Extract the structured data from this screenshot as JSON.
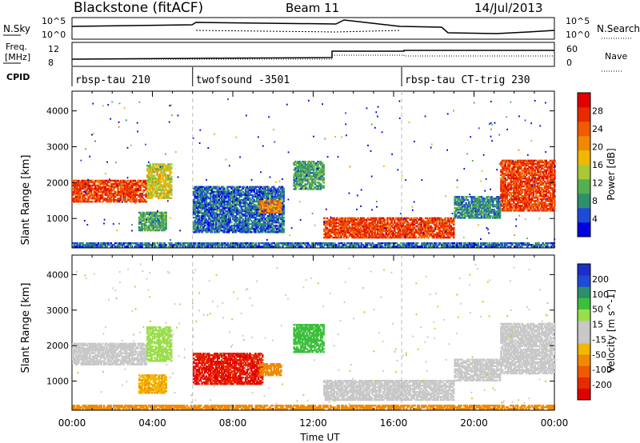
{
  "header": {
    "station": "Blackstone (fitACF)",
    "beam": "Beam 11",
    "date": "14/Jul/2013"
  },
  "top_panels": {
    "nsky_label": "N.Sky",
    "nsearch_label": "N.Search",
    "freq_label_1": "Freq.",
    "freq_label_2": "[MHz]",
    "nave_label": "Nave",
    "cpid_label": "CPID",
    "nsky_ticks": [
      "10^5",
      "10^0"
    ],
    "nsearch_ticks": [
      "10^5",
      "10^0"
    ],
    "freq_ticks": [
      "12",
      "8"
    ],
    "nave_ticks": [
      "60",
      "0"
    ]
  },
  "cpid_segments": [
    {
      "label": "rbsp-tau 210",
      "start_hour": 0
    },
    {
      "label": "twofsound -3501",
      "start_hour": 6
    },
    {
      "label": "rbsp-tau CT-trig 230",
      "start_hour": 16.4
    }
  ],
  "axes": {
    "xlabel": "Time UT",
    "xticks": [
      "00:00",
      "04:00",
      "08:00",
      "12:00",
      "16:00",
      "20:00",
      "00:00"
    ],
    "ylabel": "Slant Range [km]",
    "yticks": [
      "1000",
      "2000",
      "3000",
      "4000"
    ]
  },
  "power_colorbar": {
    "label": "Power [dB]",
    "ticks": [
      "4",
      "8",
      "12",
      "16",
      "20",
      "24",
      "28"
    ],
    "colors": [
      "#0000e0",
      "#1e4ad8",
      "#2f8f6f",
      "#55b050",
      "#a8c838",
      "#f0b800",
      "#f08a00",
      "#f05a00",
      "#e82a00",
      "#e00000"
    ]
  },
  "velocity_colorbar": {
    "label": "Velocity [m s^-1]",
    "ticks": [
      "200",
      "100",
      "50",
      "15",
      "-15",
      "-50",
      "-100",
      "-200"
    ],
    "colors": [
      "#1e2fc8",
      "#1e4ad8",
      "#2a8f6a",
      "#3cbf3c",
      "#9ade4a",
      "#c8c8c8",
      "#c8c8c8",
      "#f0b800",
      "#f08a00",
      "#f05a00",
      "#e82a00",
      "#e00000"
    ]
  },
  "chart_data": [
    {
      "type": "heatmap",
      "title": "Power",
      "xlabel": "Time UT",
      "ylabel": "Slant Range [km]",
      "xlim_hours": [
        0,
        24
      ],
      "ylim_km": [
        180,
        4550
      ],
      "value_label": "Power [dB]",
      "regions": [
        {
          "t0": 0.0,
          "t1": 3.7,
          "r0": 1450,
          "r1": 2050,
          "value": 26
        },
        {
          "t0": 3.7,
          "t1": 4.9,
          "r0": 1550,
          "r1": 2500,
          "value": 16
        },
        {
          "t0": 3.3,
          "t1": 4.7,
          "r0": 650,
          "r1": 1150,
          "value": 10
        },
        {
          "t0": 6.0,
          "t1": 10.5,
          "r0": 600,
          "r1": 1900,
          "value": 6
        },
        {
          "t0": 9.3,
          "t1": 10.4,
          "r0": 1150,
          "r1": 1500,
          "value": 22
        },
        {
          "t0": 11.0,
          "t1": 12.5,
          "r0": 1800,
          "r1": 2600,
          "value": 10
        },
        {
          "t0": 12.5,
          "t1": 19.0,
          "r0": 450,
          "r1": 1000,
          "value": 26
        },
        {
          "t0": 19.0,
          "t1": 21.3,
          "r0": 1000,
          "r1": 1600,
          "value": 8
        },
        {
          "t0": 21.3,
          "t1": 24.0,
          "r0": 1200,
          "r1": 2600,
          "value": 26
        },
        {
          "t0": 0.0,
          "t1": 24.0,
          "r0": 200,
          "r1": 330,
          "value": 6
        }
      ]
    },
    {
      "type": "heatmap",
      "title": "Velocity",
      "xlabel": "Time UT",
      "ylabel": "Slant Range [km]",
      "xlim_hours": [
        0,
        24
      ],
      "ylim_km": [
        180,
        4550
      ],
      "value_label": "Velocity [m s^-1]",
      "regions": [
        {
          "t0": 0.0,
          "t1": 3.7,
          "r0": 1450,
          "r1": 2050,
          "value": 0
        },
        {
          "t0": 3.7,
          "t1": 4.9,
          "r0": 1550,
          "r1": 2500,
          "value": 20
        },
        {
          "t0": 3.3,
          "t1": 4.7,
          "r0": 650,
          "r1": 1150,
          "value": -30
        },
        {
          "t0": 6.0,
          "t1": 9.5,
          "r0": 900,
          "r1": 1800,
          "value": -250
        },
        {
          "t0": 9.3,
          "t1": 10.4,
          "r0": 1150,
          "r1": 1500,
          "value": -60
        },
        {
          "t0": 11.0,
          "t1": 12.5,
          "r0": 1800,
          "r1": 2600,
          "value": 60
        },
        {
          "t0": 12.5,
          "t1": 19.0,
          "r0": 450,
          "r1": 1000,
          "value": 0
        },
        {
          "t0": 19.0,
          "t1": 21.3,
          "r0": 1000,
          "r1": 1600,
          "value": 5
        },
        {
          "t0": 21.3,
          "t1": 24.0,
          "r0": 1200,
          "r1": 2600,
          "value": 10
        },
        {
          "t0": 0.0,
          "t1": 24.0,
          "r0": 200,
          "r1": 330,
          "value": -40
        }
      ]
    }
  ]
}
